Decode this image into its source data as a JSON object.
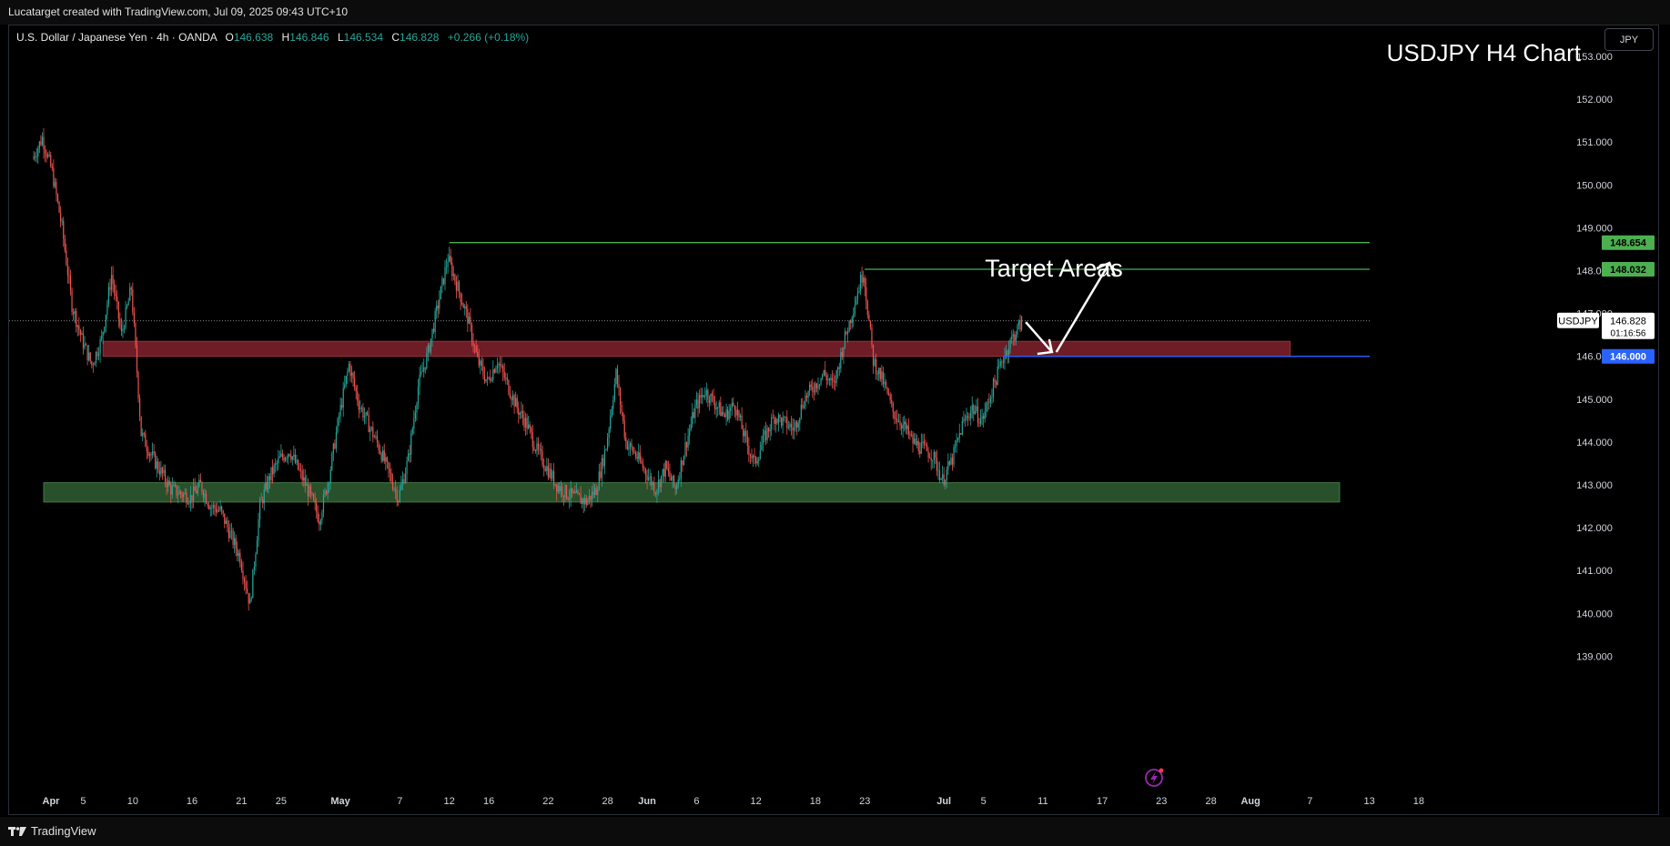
{
  "header": {
    "attribution": "Lucatarget created with TradingView.com, Jul 09, 2025 09:43 UTC+10"
  },
  "legend": {
    "symbol": "U.S. Dollar / Japanese Yen · 4h · OANDA",
    "open_label": "O",
    "open": "146.638",
    "high_label": "H",
    "high": "146.846",
    "low_label": "L",
    "low": "146.534",
    "close_label": "C",
    "close": "146.828",
    "change": "+0.266 (+0.18%)"
  },
  "currency_button": "JPY",
  "footer": {
    "brand": "TradingView"
  },
  "colors": {
    "up": "#26a69a",
    "down": "#ef5350",
    "resistance_zone": "#7a1f2a",
    "support_zone": "#2f5e32",
    "target_line": "#4caf50",
    "blue_line": "#2962ff"
  },
  "chart_data": {
    "type": "candlestick",
    "title": "USDJPY H4 Chart",
    "annotation": "Target Areas",
    "y_axis": {
      "ticks": [
        "153.000",
        "152.000",
        "151.000",
        "150.000",
        "149.000",
        "148.000",
        "147.000",
        "146.000",
        "145.000",
        "144.000",
        "143.000",
        "142.000",
        "141.000",
        "140.000",
        "139.000"
      ],
      "ylim": [
        138.5,
        154.0
      ]
    },
    "x_axis": {
      "ticks": [
        "Apr",
        "5",
        "10",
        "16",
        "21",
        "25",
        "May",
        "7",
        "12",
        "16",
        "22",
        "28",
        "Jun",
        "6",
        "12",
        "18",
        "23",
        "Jul",
        "5",
        "11",
        "17",
        "23",
        "28",
        "Aug",
        "7",
        "13",
        "18"
      ]
    },
    "zones": [
      {
        "kind": "resistance",
        "from_date": "Apr 7",
        "to_date": "Aug 5",
        "low": 146.0,
        "high": 146.35
      },
      {
        "kind": "support",
        "from_date": "Apr 1",
        "to_date": "Aug 10",
        "low": 142.6,
        "high": 143.05
      }
    ],
    "levels": [
      {
        "label": "148.654",
        "value": 148.654,
        "kind": "target"
      },
      {
        "label": "148.032",
        "value": 148.032,
        "kind": "target"
      },
      {
        "label": "146.000",
        "value": 146.0,
        "kind": "pivot"
      }
    ],
    "current_price": {
      "symbol": "USDJPY",
      "value": "146.828",
      "countdown": "01:16:56",
      "price": 146.828
    },
    "price_path": [
      [
        "Mar 31",
        150.6
      ],
      [
        "Apr 1",
        151.1
      ],
      [
        "Apr 2",
        150.3
      ],
      [
        "Apr 3",
        149.0
      ],
      [
        "Apr 4",
        147.2
      ],
      [
        "Apr 5",
        146.4
      ],
      [
        "Apr 6",
        145.8
      ],
      [
        "Apr 7",
        146.4
      ],
      [
        "Apr 8",
        147.9
      ],
      [
        "Apr 9",
        146.5
      ],
      [
        "Apr 10",
        147.6
      ],
      [
        "Apr 11",
        144.2
      ],
      [
        "Apr 12",
        143.7
      ],
      [
        "Apr 14",
        142.9
      ],
      [
        "Apr 16",
        142.7
      ],
      [
        "Apr 17",
        143.0
      ],
      [
        "Apr 18",
        142.5
      ],
      [
        "Apr 19",
        142.4
      ],
      [
        "Apr 21",
        141.3
      ],
      [
        "Apr 22",
        140.2
      ],
      [
        "Apr 23",
        142.5
      ],
      [
        "Apr 24",
        143.2
      ],
      [
        "Apr 25",
        143.6
      ],
      [
        "Apr 26",
        143.8
      ],
      [
        "Apr 28",
        142.8
      ],
      [
        "Apr 29",
        142.2
      ],
      [
        "Apr 30",
        143.2
      ],
      [
        "May 1",
        144.6
      ],
      [
        "May 2",
        145.8
      ],
      [
        "May 3",
        144.9
      ],
      [
        "May 5",
        143.9
      ],
      [
        "May 6",
        143.3
      ],
      [
        "May 7",
        142.7
      ],
      [
        "May 8",
        143.6
      ],
      [
        "May 9",
        145.3
      ],
      [
        "May 10",
        146.1
      ],
      [
        "May 12",
        148.3
      ],
      [
        "May 13",
        147.6
      ],
      [
        "May 14",
        146.9
      ],
      [
        "May 15",
        145.9
      ],
      [
        "May 16",
        145.4
      ],
      [
        "May 17",
        145.9
      ],
      [
        "May 19",
        144.8
      ],
      [
        "May 20",
        144.4
      ],
      [
        "May 21",
        143.8
      ],
      [
        "May 22",
        143.4
      ],
      [
        "May 23",
        143.0
      ],
      [
        "May 24",
        142.8
      ],
      [
        "May 26",
        142.6
      ],
      [
        "May 27",
        142.9
      ],
      [
        "May 28",
        143.9
      ],
      [
        "May 29",
        145.6
      ],
      [
        "May 30",
        144.0
      ],
      [
        "May 31",
        143.7
      ],
      [
        "Jun 2",
        142.9
      ],
      [
        "Jun 3",
        143.4
      ],
      [
        "Jun 4",
        142.9
      ],
      [
        "Jun 5",
        143.9
      ],
      [
        "Jun 6",
        144.8
      ],
      [
        "Jun 7",
        145.2
      ],
      [
        "Jun 9",
        144.6
      ],
      [
        "Jun 10",
        144.9
      ],
      [
        "Jun 11",
        144.1
      ],
      [
        "Jun 12",
        143.5
      ],
      [
        "Jun 13",
        144.1
      ],
      [
        "Jun 14",
        144.6
      ],
      [
        "Jun 16",
        144.3
      ],
      [
        "Jun 17",
        145.0
      ],
      [
        "Jun 18",
        145.3
      ],
      [
        "Jun 19",
        145.6
      ],
      [
        "Jun 20",
        145.3
      ],
      [
        "Jun 21",
        146.3
      ],
      [
        "Jun 23",
        148.0
      ],
      [
        "Jun 24",
        145.9
      ],
      [
        "Jun 25",
        145.4
      ],
      [
        "Jun 26",
        144.7
      ],
      [
        "Jun 27",
        144.4
      ],
      [
        "Jun 28",
        144.0
      ],
      [
        "Jun 30",
        143.7
      ],
      [
        "Jul 1",
        143.1
      ],
      [
        "Jul 2",
        143.6
      ],
      [
        "Jul 3",
        144.4
      ],
      [
        "Jul 4",
        144.8
      ],
      [
        "Jul 5",
        144.5
      ],
      [
        "Jul 7",
        145.9
      ],
      [
        "Jul 8",
        146.4
      ],
      [
        "Jul 9",
        146.8
      ]
    ]
  }
}
